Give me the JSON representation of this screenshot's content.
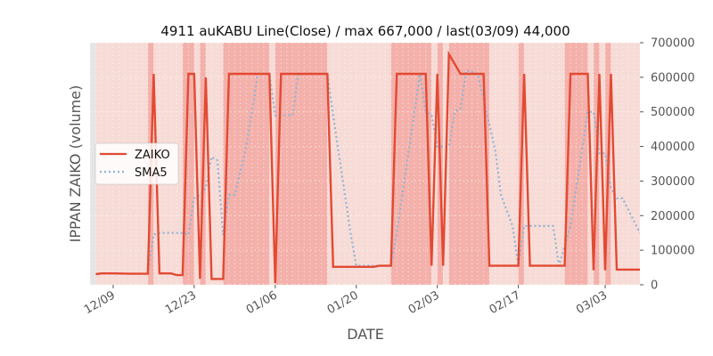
{
  "chart_data": {
    "type": "line",
    "title": "4911 auKABU Line(Close) / max 667,000 / last(03/09) 44,000",
    "xlabel": "DATE",
    "ylabel": "IPPAN ZAIKO (volume)",
    "ylim": [
      0,
      700000
    ],
    "y_ticks": [
      0,
      100000,
      200000,
      300000,
      400000,
      500000,
      600000,
      700000
    ],
    "y_tick_labels": [
      "0",
      "100000",
      "200000",
      "300000",
      "400000",
      "500000",
      "600000",
      "700000"
    ],
    "x_range": [
      "2019-12-05",
      "2020-03-09"
    ],
    "x_ticks": [
      "2019-12-09",
      "2019-12-23",
      "2020-01-06",
      "2020-01-20",
      "2020-02-03",
      "2020-02-17",
      "2020-03-03"
    ],
    "x_tick_labels": [
      "12/09",
      "12/23",
      "01/06",
      "01/20",
      "02/03",
      "02/17",
      "03/03"
    ],
    "grid": true,
    "legend_position": "center-left",
    "colors": {
      "zaiko": "#e24a33",
      "sma5": "#8eb4d6",
      "band_strong": "#f4b0aa",
      "band_light": "#f7dbd6",
      "band_gap": "#e5e5e5"
    },
    "series": [
      {
        "name": "ZAIKO",
        "style": "solid",
        "points": [
          [
            "2019-12-06",
            31000
          ],
          [
            "2019-12-07",
            33000
          ],
          [
            "2019-12-09",
            33000
          ],
          [
            "2019-12-12",
            32000
          ],
          [
            "2019-12-15",
            32000
          ],
          [
            "2019-12-16",
            610000
          ],
          [
            "2019-12-17",
            33000
          ],
          [
            "2019-12-19",
            33000
          ],
          [
            "2019-12-20",
            28000
          ],
          [
            "2019-12-21",
            28000
          ],
          [
            "2019-12-22",
            610000
          ],
          [
            "2019-12-23",
            610000
          ],
          [
            "2019-12-24",
            17000
          ],
          [
            "2019-12-25",
            600000
          ],
          [
            "2019-12-26",
            17000
          ],
          [
            "2019-12-28",
            17000
          ],
          [
            "2019-12-29",
            610000
          ],
          [
            "2020-01-01",
            610000
          ],
          [
            "2020-01-05",
            610000
          ],
          [
            "2020-01-06",
            5000
          ],
          [
            "2020-01-07",
            610000
          ],
          [
            "2020-01-11",
            610000
          ],
          [
            "2020-01-15",
            610000
          ],
          [
            "2020-01-16",
            52000
          ],
          [
            "2020-01-23",
            52000
          ],
          [
            "2020-01-24",
            55000
          ],
          [
            "2020-01-26",
            55000
          ],
          [
            "2020-01-27",
            610000
          ],
          [
            "2020-01-31",
            610000
          ],
          [
            "2020-02-01",
            610000
          ],
          [
            "2020-02-02",
            55000
          ],
          [
            "2020-02-03",
            610000
          ],
          [
            "2020-02-04",
            55000
          ],
          [
            "2020-02-05",
            667000
          ],
          [
            "2020-02-07",
            610000
          ],
          [
            "2020-02-11",
            610000
          ],
          [
            "2020-02-12",
            55000
          ],
          [
            "2020-02-17",
            55000
          ],
          [
            "2020-02-18",
            610000
          ],
          [
            "2020-02-19",
            55000
          ],
          [
            "2020-02-25",
            55000
          ],
          [
            "2020-02-26",
            610000
          ],
          [
            "2020-02-29",
            610000
          ],
          [
            "2020-03-01",
            42000
          ],
          [
            "2020-03-02",
            610000
          ],
          [
            "2020-03-03",
            42000
          ],
          [
            "2020-03-04",
            610000
          ],
          [
            "2020-03-05",
            44000
          ],
          [
            "2020-03-09",
            44000
          ]
        ]
      },
      {
        "name": "SMA5",
        "style": "dotted",
        "points": [
          [
            "2019-12-15",
            32000
          ],
          [
            "2019-12-16",
            145000
          ],
          [
            "2019-12-17",
            150000
          ],
          [
            "2019-12-21",
            150000
          ],
          [
            "2019-12-22",
            145000
          ],
          [
            "2019-12-23",
            250000
          ],
          [
            "2019-12-24",
            260000
          ],
          [
            "2019-12-25",
            280000
          ],
          [
            "2019-12-26",
            370000
          ],
          [
            "2019-12-27",
            360000
          ],
          [
            "2019-12-28",
            145000
          ],
          [
            "2019-12-29",
            260000
          ],
          [
            "2019-12-30",
            260000
          ],
          [
            "2020-01-01",
            400000
          ],
          [
            "2020-01-03",
            610000
          ],
          [
            "2020-01-05",
            610000
          ],
          [
            "2020-01-06",
            490000
          ],
          [
            "2020-01-09",
            490000
          ],
          [
            "2020-01-10",
            610000
          ],
          [
            "2020-01-15",
            610000
          ],
          [
            "2020-01-16",
            490000
          ],
          [
            "2020-01-19",
            150000
          ],
          [
            "2020-01-20",
            55000
          ],
          [
            "2020-01-23",
            55000
          ],
          [
            "2020-01-26",
            55000
          ],
          [
            "2020-01-27",
            150000
          ],
          [
            "2020-01-31",
            610000
          ],
          [
            "2020-02-01",
            500000
          ],
          [
            "2020-02-02",
            490000
          ],
          [
            "2020-02-03",
            400000
          ],
          [
            "2020-02-05",
            400000
          ],
          [
            "2020-02-06",
            500000
          ],
          [
            "2020-02-07",
            510000
          ],
          [
            "2020-02-08",
            620000
          ],
          [
            "2020-02-10",
            610000
          ],
          [
            "2020-02-13",
            390000
          ],
          [
            "2020-02-14",
            260000
          ],
          [
            "2020-02-16",
            170000
          ],
          [
            "2020-02-17",
            55000
          ],
          [
            "2020-02-18",
            170000
          ],
          [
            "2020-02-22",
            170000
          ],
          [
            "2020-02-23",
            170000
          ],
          [
            "2020-02-24",
            55000
          ],
          [
            "2020-02-26",
            170000
          ],
          [
            "2020-02-29",
            500000
          ],
          [
            "2020-03-01",
            500000
          ],
          [
            "2020-03-02",
            380000
          ],
          [
            "2020-03-03",
            380000
          ],
          [
            "2020-03-04",
            280000
          ],
          [
            "2020-03-05",
            250000
          ],
          [
            "2020-03-06",
            250000
          ],
          [
            "2020-03-09",
            150000
          ]
        ]
      }
    ],
    "shaded_bands": [
      {
        "from": "2019-12-05",
        "to": "2019-12-06",
        "level": "gap"
      },
      {
        "from": "2019-12-06",
        "to": "2019-12-15",
        "level": "light"
      },
      {
        "from": "2019-12-15",
        "to": "2019-12-16",
        "level": "strong"
      },
      {
        "from": "2019-12-16",
        "to": "2019-12-21",
        "level": "light"
      },
      {
        "from": "2019-12-21",
        "to": "2019-12-23",
        "level": "strong"
      },
      {
        "from": "2019-12-23",
        "to": "2019-12-24",
        "level": "light"
      },
      {
        "from": "2019-12-24",
        "to": "2019-12-25",
        "level": "strong"
      },
      {
        "from": "2019-12-25",
        "to": "2019-12-28",
        "level": "light"
      },
      {
        "from": "2019-12-28",
        "to": "2020-01-05",
        "level": "strong"
      },
      {
        "from": "2020-01-05",
        "to": "2020-01-06",
        "level": "light"
      },
      {
        "from": "2020-01-06",
        "to": "2020-01-15",
        "level": "strong"
      },
      {
        "from": "2020-01-15",
        "to": "2020-01-26",
        "level": "light"
      },
      {
        "from": "2020-01-26",
        "to": "2020-02-02",
        "level": "strong"
      },
      {
        "from": "2020-02-02",
        "to": "2020-02-03",
        "level": "light"
      },
      {
        "from": "2020-02-03",
        "to": "2020-02-04",
        "level": "strong"
      },
      {
        "from": "2020-02-04",
        "to": "2020-02-05",
        "level": "light"
      },
      {
        "from": "2020-02-05",
        "to": "2020-02-12",
        "level": "strong"
      },
      {
        "from": "2020-02-12",
        "to": "2020-02-17",
        "level": "light"
      },
      {
        "from": "2020-02-17",
        "to": "2020-02-18",
        "level": "strong"
      },
      {
        "from": "2020-02-18",
        "to": "2020-02-25",
        "level": "light"
      },
      {
        "from": "2020-02-25",
        "to": "2020-02-29",
        "level": "strong"
      },
      {
        "from": "2020-02-29",
        "to": "2020-03-01",
        "level": "light"
      },
      {
        "from": "2020-03-01",
        "to": "2020-03-02",
        "level": "strong"
      },
      {
        "from": "2020-03-02",
        "to": "2020-03-03",
        "level": "light"
      },
      {
        "from": "2020-03-03",
        "to": "2020-03-04",
        "level": "strong"
      },
      {
        "from": "2020-03-04",
        "to": "2020-03-09",
        "level": "light"
      }
    ]
  }
}
